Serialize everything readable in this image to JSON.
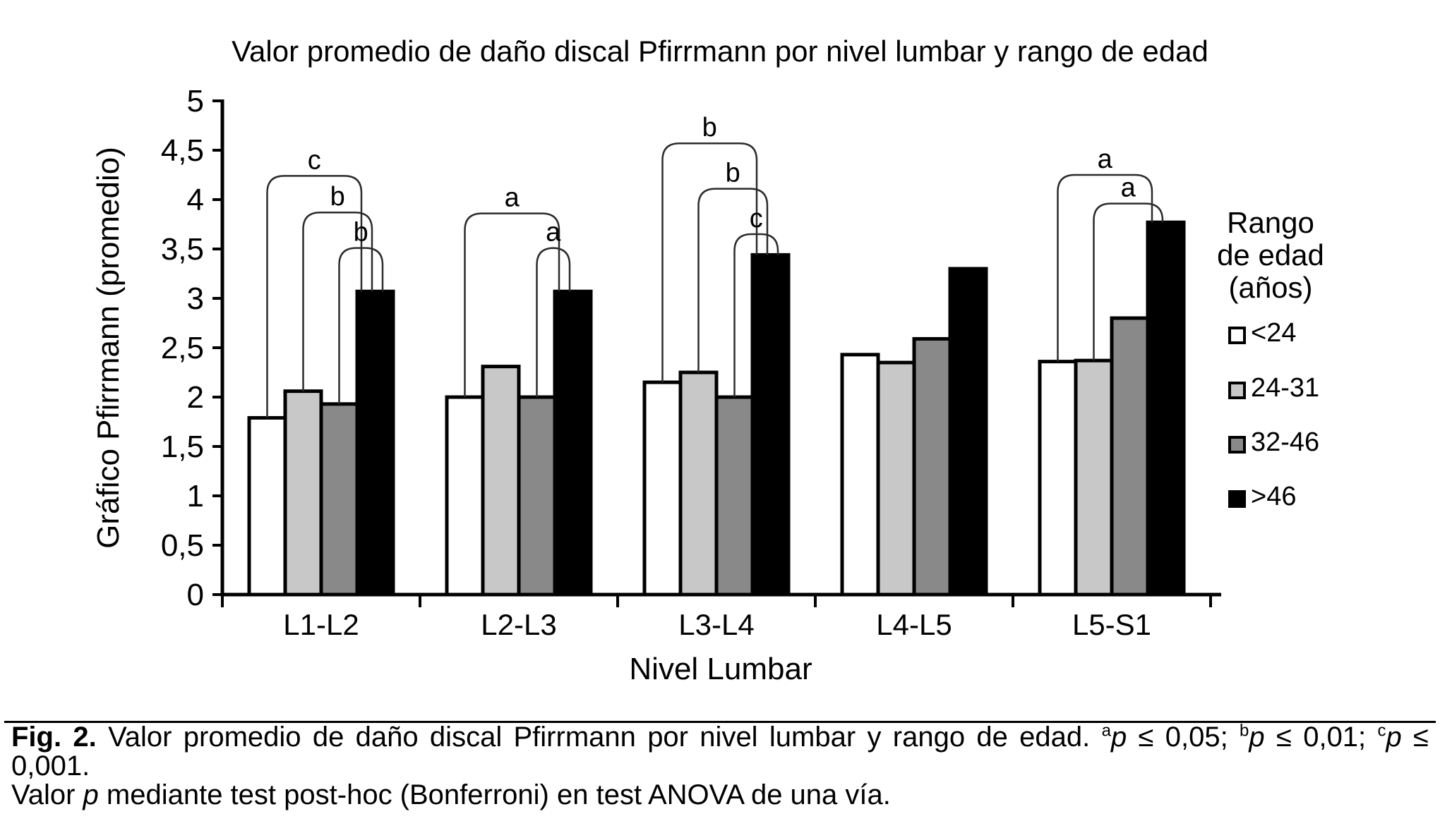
{
  "chart_data": {
    "type": "bar",
    "title": "Valor promedio de daño discal Pfirrmann por nivel lumbar y rango de edad",
    "xlabel": "Nivel Lumbar",
    "ylabel": "Gráfico Pfirrmann (promedio)",
    "ylim": [
      0,
      5
    ],
    "ytick_labels": [
      "0",
      "0,5",
      "1",
      "1,5",
      "2",
      "2,5",
      "3",
      "3,5",
      "4",
      "4,5",
      "5"
    ],
    "grid": false,
    "legend_position": "right",
    "legend_title_lines": [
      "Rango",
      "de edad",
      "(años)"
    ],
    "categories": [
      "L1-L2",
      "L2-L3",
      "L3-L4",
      "L4-L5",
      "L5-S1"
    ],
    "series": [
      {
        "name": "<24",
        "color": "#ffffff",
        "values": [
          1.79,
          2.0,
          2.15,
          2.43,
          2.36
        ]
      },
      {
        "name": "24-31",
        "color": "#c8c8c8",
        "values": [
          2.06,
          2.31,
          2.25,
          2.35,
          2.37
        ]
      },
      {
        "name": "32-46",
        "color": "#898989",
        "values": [
          1.93,
          2.0,
          2.0,
          2.59,
          2.8
        ]
      },
      {
        "name": ">46",
        "color": "#000000",
        "values": [
          3.07,
          3.07,
          3.44,
          3.3,
          3.77
        ]
      }
    ],
    "significance_brackets": [
      {
        "group": 0,
        "from": 0,
        "to": 3,
        "label": "c",
        "y": 4.24
      },
      {
        "group": 0,
        "from": 1,
        "to": 3,
        "label": "b",
        "y": 3.87
      },
      {
        "group": 0,
        "from": 2,
        "to": 3,
        "label": "b",
        "y": 3.51
      },
      {
        "group": 1,
        "from": 0,
        "to": 3,
        "label": "a",
        "y": 3.86
      },
      {
        "group": 1,
        "from": 2,
        "to": 3,
        "label": "a",
        "y": 3.51
      },
      {
        "group": 2,
        "from": 0,
        "to": 3,
        "label": "b",
        "y": 4.57
      },
      {
        "group": 2,
        "from": 1,
        "to": 3,
        "label": "b",
        "y": 4.11
      },
      {
        "group": 2,
        "from": 2,
        "to": 3,
        "label": "c",
        "y": 3.65
      },
      {
        "group": 4,
        "from": 0,
        "to": 3,
        "label": "a",
        "y": 4.25
      },
      {
        "group": 4,
        "from": 1,
        "to": 3,
        "label": "a",
        "y": 3.96
      }
    ]
  },
  "caption": {
    "line1": [
      {
        "t": "Fig. 2.",
        "b": 1
      },
      {
        "t": " Valor promedio de daño discal Pfirrmann por nivel lumbar y rango de edad. "
      },
      {
        "t": "a",
        "sup": 1
      },
      {
        "t": "p",
        "i": 1
      },
      {
        "t": " ≤ 0,05; "
      },
      {
        "t": "b",
        "sup": 1
      },
      {
        "t": "p",
        "i": 1
      },
      {
        "t": " ≤ 0,01; "
      },
      {
        "t": "c",
        "sup": 1
      },
      {
        "t": "p",
        "i": 1
      },
      {
        "t": " ≤ 0,001."
      }
    ],
    "line2": [
      {
        "t": "Valor "
      },
      {
        "t": "p",
        "i": 1
      },
      {
        "t": " mediante test post-hoc (Bonferroni) en test ANOVA de una vía."
      }
    ]
  }
}
